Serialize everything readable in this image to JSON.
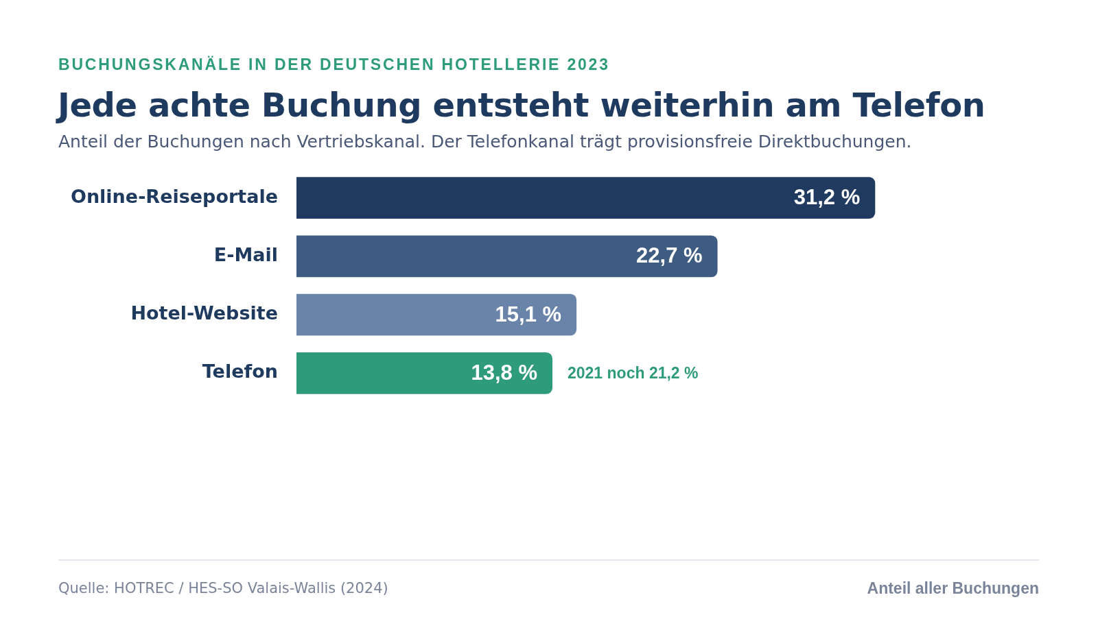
{
  "chart_data": {
    "type": "bar",
    "orientation": "horizontal",
    "title": "Jede achte Buchung entsteht weiterhin am Telefon",
    "subtitle": "Anteil der Buchungen nach Vertriebskanal. Der Telefonkanal trägt provisionsfreie Direktbuchungen.",
    "categories": [
      "Online-Reiseportale",
      "E-Mail",
      "Hotel-Website",
      "Telefon"
    ],
    "values": [
      31.2,
      22.7,
      15.1,
      13.8
    ],
    "colors": [
      "#203a60",
      "#3e5b82",
      "#6a83a8",
      "#2e9b7a"
    ],
    "value_labels": [
      "31,2 %",
      "22,7 %",
      "15,1 %",
      "13,8 %"
    ],
    "tick_labels": "y",
    "annotations": [
      "BUCHUNGSKANÄLE IN DER DEUTSCHEN HOTELLERIE 2023",
      {
        "text": "2021 noch 21,2 %",
        "x": 13.8,
        "y": "Telefon"
      },
      "Quelle: HOTREC / HES-SO Valais-Wallis (2024)",
      "Anteil aller Buchungen"
    ]
  }
}
